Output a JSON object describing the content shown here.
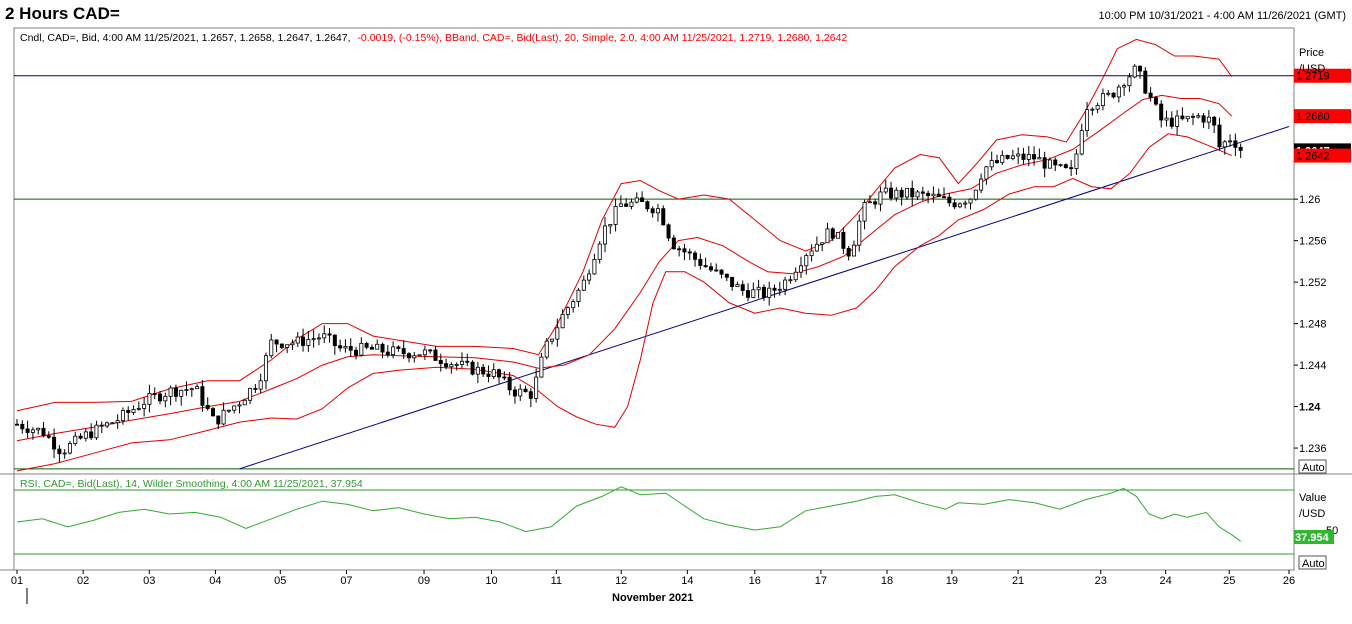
{
  "header": {
    "title": "2 Hours CAD=",
    "date_range": "10:00 PM 10/31/2021 - 4:00 AM 11/26/2021 (GMT)"
  },
  "price_pane": {
    "legend_black": "Cndl, CAD=, Bid,  4:00 AM 11/25/2021, 1.2657, 1.2658, 1.2647, 1.2647,",
    "legend_red": "-0.0019, (-0.15%), BBand, CAD=, Bid(Last),  20, Simple, 2.0, 4:00 AM 11/25/2021, 1.2719, 1.2680, 1.2642",
    "axis_title_1": "Price",
    "axis_title_2": "/USD",
    "auto_label": "Auto",
    "price_labels": [
      {
        "text": "1.26",
        "value": 1.26,
        "bold": false
      },
      {
        "text": "1.256",
        "value": 1.256,
        "bold": false
      },
      {
        "text": "1.252",
        "value": 1.252,
        "bold": false
      },
      {
        "text": "1.248",
        "value": 1.248,
        "bold": false
      },
      {
        "text": "1.244",
        "value": 1.244,
        "bold": false
      },
      {
        "text": "1.24",
        "value": 1.24,
        "bold": true
      },
      {
        "text": "1.236",
        "value": 1.236,
        "bold": false
      }
    ],
    "value_tags": [
      {
        "text": "1.2719",
        "value": 1.2719,
        "bg": "#ff0000",
        "fg": "#000000"
      },
      {
        "text": "1.2680",
        "value": 1.268,
        "bg": "#ff0000",
        "fg": "#000000"
      },
      {
        "text": "1.2647",
        "value": 1.2647,
        "bg": "#000000",
        "fg": "#ffffff"
      },
      {
        "text": "1.2642",
        "value": 1.2642,
        "bg": "#ff0000",
        "fg": "#000000"
      }
    ]
  },
  "rsi_pane": {
    "legend": "RSI, CAD=, Bid(Last),  14, Wilder Smoothing,  4:00 AM 11/25/2021, 37.954",
    "axis_title_1": "Value",
    "axis_title_2": "/USD",
    "level_label": "50",
    "value_tag": "37.954",
    "auto_label": "Auto"
  },
  "x_axis": {
    "labels": [
      "01",
      "02",
      "03",
      "04",
      "05",
      "07",
      "09",
      "10",
      "11",
      "12",
      "14",
      "16",
      "17",
      "18",
      "19",
      "21",
      "23",
      "24",
      "25",
      "26"
    ],
    "month_label": "November 2021"
  },
  "chart_data": {
    "type": "candlestick",
    "title": "2 Hours CAD=",
    "y_range": [
      1.2335,
      1.2765
    ],
    "x_range": [
      0,
      1
    ],
    "day_ticks": [
      {
        "label": "01",
        "x": 0.0
      },
      {
        "label": "02",
        "x": 0.052
      },
      {
        "label": "03",
        "x": 0.104
      },
      {
        "label": "04",
        "x": 0.156
      },
      {
        "label": "05",
        "x": 0.207
      },
      {
        "label": "07",
        "x": 0.259
      },
      {
        "label": "09",
        "x": 0.32
      },
      {
        "label": "10",
        "x": 0.373
      },
      {
        "label": "11",
        "x": 0.424
      },
      {
        "label": "12",
        "x": 0.475
      },
      {
        "label": "14",
        "x": 0.527
      },
      {
        "label": "16",
        "x": 0.58
      },
      {
        "label": "17",
        "x": 0.632
      },
      {
        "label": "18",
        "x": 0.684
      },
      {
        "label": "19",
        "x": 0.735
      },
      {
        "label": "21",
        "x": 0.787
      },
      {
        "label": "23",
        "x": 0.852
      },
      {
        "label": "24",
        "x": 0.903
      },
      {
        "label": "25",
        "x": 0.953
      },
      {
        "label": "26",
        "x": 1.0
      }
    ],
    "close_path": [
      [
        0.0,
        1.2383
      ],
      [
        0.02,
        1.2376
      ],
      [
        0.035,
        1.2357
      ],
      [
        0.055,
        1.2373
      ],
      [
        0.08,
        1.2388
      ],
      [
        0.1,
        1.2405
      ],
      [
        0.12,
        1.2415
      ],
      [
        0.14,
        1.2418
      ],
      [
        0.155,
        1.2385
      ],
      [
        0.175,
        1.2405
      ],
      [
        0.19,
        1.2425
      ],
      [
        0.2,
        1.2462
      ],
      [
        0.22,
        1.2462
      ],
      [
        0.24,
        1.2468
      ],
      [
        0.255,
        1.2455
      ],
      [
        0.28,
        1.2455
      ],
      [
        0.3,
        1.2452
      ],
      [
        0.32,
        1.2452
      ],
      [
        0.335,
        1.2445
      ],
      [
        0.355,
        1.2437
      ],
      [
        0.375,
        1.2432
      ],
      [
        0.39,
        1.2415
      ],
      [
        0.405,
        1.2412
      ],
      [
        0.415,
        1.2455
      ],
      [
        0.43,
        1.249
      ],
      [
        0.445,
        1.2518
      ],
      [
        0.46,
        1.2568
      ],
      [
        0.475,
        1.2595
      ],
      [
        0.49,
        1.2596
      ],
      [
        0.505,
        1.259
      ],
      [
        0.515,
        1.2558
      ],
      [
        0.53,
        1.2545
      ],
      [
        0.55,
        1.2528
      ],
      [
        0.57,
        1.2512
      ],
      [
        0.59,
        1.2508
      ],
      [
        0.605,
        1.2522
      ],
      [
        0.62,
        1.2548
      ],
      [
        0.64,
        1.257
      ],
      [
        0.655,
        1.2548
      ],
      [
        0.665,
        1.259
      ],
      [
        0.68,
        1.2605
      ],
      [
        0.7,
        1.2605
      ],
      [
        0.72,
        1.2602
      ],
      [
        0.735,
        1.2596
      ],
      [
        0.75,
        1.2602
      ],
      [
        0.76,
        1.263
      ],
      [
        0.78,
        1.264
      ],
      [
        0.8,
        1.264
      ],
      [
        0.815,
        1.263
      ],
      [
        0.83,
        1.2625
      ],
      [
        0.84,
        1.269
      ],
      [
        0.86,
        1.27
      ],
      [
        0.87,
        1.2715
      ],
      [
        0.88,
        1.2725
      ],
      [
        0.89,
        1.27
      ],
      [
        0.9,
        1.2675
      ],
      [
        0.915,
        1.2675
      ],
      [
        0.93,
        1.268
      ],
      [
        0.94,
        1.2675
      ],
      [
        0.945,
        1.265
      ],
      [
        0.955,
        1.266
      ],
      [
        0.962,
        1.2647
      ]
    ],
    "bband": {
      "period": 20,
      "stdev": 2.0,
      "upper": [
        1.2719
      ],
      "middle": [
        1.268
      ],
      "lower": [
        1.2642
      ],
      "upper_path": [
        [
          0.0,
          1.2396
        ],
        [
          0.03,
          1.2404
        ],
        [
          0.06,
          1.2404
        ],
        [
          0.09,
          1.2405
        ],
        [
          0.12,
          1.2417
        ],
        [
          0.15,
          1.2425
        ],
        [
          0.175,
          1.2425
        ],
        [
          0.2,
          1.2445
        ],
        [
          0.22,
          1.2465
        ],
        [
          0.24,
          1.248
        ],
        [
          0.26,
          1.248
        ],
        [
          0.28,
          1.2468
        ],
        [
          0.3,
          1.2464
        ],
        [
          0.33,
          1.2458
        ],
        [
          0.36,
          1.2458
        ],
        [
          0.39,
          1.2456
        ],
        [
          0.41,
          1.245
        ],
        [
          0.425,
          1.248
        ],
        [
          0.445,
          1.253
        ],
        [
          0.46,
          1.258
        ],
        [
          0.475,
          1.2615
        ],
        [
          0.49,
          1.2618
        ],
        [
          0.505,
          1.2608
        ],
        [
          0.52,
          1.26
        ],
        [
          0.54,
          1.2604
        ],
        [
          0.56,
          1.26
        ],
        [
          0.58,
          1.258
        ],
        [
          0.6,
          1.256
        ],
        [
          0.62,
          1.255
        ],
        [
          0.64,
          1.256
        ],
        [
          0.66,
          1.2585
        ],
        [
          0.675,
          1.2608
        ],
        [
          0.69,
          1.263
        ],
        [
          0.71,
          1.2643
        ],
        [
          0.725,
          1.264
        ],
        [
          0.74,
          1.2615
        ],
        [
          0.755,
          1.2635
        ],
        [
          0.77,
          1.2657
        ],
        [
          0.79,
          1.2662
        ],
        [
          0.81,
          1.266
        ],
        [
          0.825,
          1.2655
        ],
        [
          0.84,
          1.2685
        ],
        [
          0.855,
          1.272
        ],
        [
          0.865,
          1.2745
        ],
        [
          0.88,
          1.2754
        ],
        [
          0.895,
          1.2749
        ],
        [
          0.91,
          1.2738
        ],
        [
          0.925,
          1.2738
        ],
        [
          0.945,
          1.2735
        ],
        [
          0.955,
          1.2718
        ]
      ],
      "middle_path": [
        [
          0.0,
          1.2367
        ],
        [
          0.03,
          1.2374
        ],
        [
          0.06,
          1.238
        ],
        [
          0.09,
          1.2387
        ],
        [
          0.12,
          1.2393
        ],
        [
          0.15,
          1.24
        ],
        [
          0.175,
          1.2405
        ],
        [
          0.2,
          1.2417
        ],
        [
          0.22,
          1.2427
        ],
        [
          0.24,
          1.244
        ],
        [
          0.26,
          1.2448
        ],
        [
          0.28,
          1.245
        ],
        [
          0.3,
          1.2449
        ],
        [
          0.33,
          1.2448
        ],
        [
          0.36,
          1.2447
        ],
        [
          0.39,
          1.2443
        ],
        [
          0.41,
          1.2437
        ],
        [
          0.43,
          1.244
        ],
        [
          0.45,
          1.245
        ],
        [
          0.47,
          1.2475
        ],
        [
          0.49,
          1.251
        ],
        [
          0.505,
          1.254
        ],
        [
          0.52,
          1.256
        ],
        [
          0.535,
          1.2563
        ],
        [
          0.555,
          1.2555
        ],
        [
          0.575,
          1.254
        ],
        [
          0.59,
          1.253
        ],
        [
          0.61,
          1.2528
        ],
        [
          0.63,
          1.2535
        ],
        [
          0.65,
          1.2545
        ],
        [
          0.67,
          1.2565
        ],
        [
          0.69,
          1.2585
        ],
        [
          0.71,
          1.2597
        ],
        [
          0.73,
          1.2605
        ],
        [
          0.75,
          1.261
        ],
        [
          0.77,
          1.2625
        ],
        [
          0.79,
          1.2633
        ],
        [
          0.81,
          1.2638
        ],
        [
          0.83,
          1.2648
        ],
        [
          0.85,
          1.2665
        ],
        [
          0.87,
          1.2683
        ],
        [
          0.885,
          1.2696
        ],
        [
          0.9,
          1.27
        ],
        [
          0.915,
          1.2697
        ],
        [
          0.93,
          1.2697
        ],
        [
          0.945,
          1.2692
        ],
        [
          0.955,
          1.268
        ]
      ],
      "lower_path": [
        [
          0.0,
          1.2338
        ],
        [
          0.03,
          1.2345
        ],
        [
          0.06,
          1.2355
        ],
        [
          0.09,
          1.2365
        ],
        [
          0.12,
          1.2368
        ],
        [
          0.15,
          1.2377
        ],
        [
          0.175,
          1.2385
        ],
        [
          0.2,
          1.2389
        ],
        [
          0.22,
          1.2388
        ],
        [
          0.24,
          1.2398
        ],
        [
          0.26,
          1.2418
        ],
        [
          0.28,
          1.2432
        ],
        [
          0.3,
          1.2435
        ],
        [
          0.33,
          1.2438
        ],
        [
          0.36,
          1.2436
        ],
        [
          0.39,
          1.243
        ],
        [
          0.41,
          1.2415
        ],
        [
          0.425,
          1.24
        ],
        [
          0.44,
          1.239
        ],
        [
          0.455,
          1.2383
        ],
        [
          0.47,
          1.238
        ],
        [
          0.48,
          1.24
        ],
        [
          0.49,
          1.2445
        ],
        [
          0.5,
          1.25
        ],
        [
          0.51,
          1.253
        ],
        [
          0.525,
          1.253
        ],
        [
          0.54,
          1.252
        ],
        [
          0.56,
          1.25
        ],
        [
          0.58,
          1.249
        ],
        [
          0.6,
          1.2495
        ],
        [
          0.62,
          1.249
        ],
        [
          0.64,
          1.2488
        ],
        [
          0.66,
          1.2495
        ],
        [
          0.675,
          1.2512
        ],
        [
          0.69,
          1.2535
        ],
        [
          0.71,
          1.2555
        ],
        [
          0.725,
          1.2565
        ],
        [
          0.74,
          1.258
        ],
        [
          0.76,
          1.259
        ],
        [
          0.78,
          1.2605
        ],
        [
          0.8,
          1.2612
        ],
        [
          0.815,
          1.2612
        ],
        [
          0.83,
          1.262
        ],
        [
          0.845,
          1.2612
        ],
        [
          0.86,
          1.261
        ],
        [
          0.875,
          1.2625
        ],
        [
          0.89,
          1.265
        ],
        [
          0.905,
          1.2663
        ],
        [
          0.92,
          1.266
        ],
        [
          0.94,
          1.265
        ],
        [
          0.955,
          1.2642
        ]
      ]
    },
    "horizontal_lines": [
      {
        "value": 1.2719,
        "color": "#000080"
      },
      {
        "value": 1.26,
        "color": "#006400"
      },
      {
        "value": 1.234,
        "color": "#006400"
      }
    ],
    "trendline": {
      "color": "#000080",
      "x1": 0.175,
      "y1": 1.234,
      "x2": 1.0,
      "y2": 1.267
    },
    "last_close": 1.2647,
    "rsi": {
      "period": 14,
      "last": 37.954,
      "levels": [
        70,
        30
      ],
      "y_range": [
        20,
        80
      ],
      "path": [
        [
          0.0,
          50
        ],
        [
          0.02,
          52
        ],
        [
          0.04,
          47
        ],
        [
          0.06,
          51
        ],
        [
          0.08,
          56
        ],
        [
          0.1,
          58
        ],
        [
          0.12,
          55
        ],
        [
          0.14,
          56
        ],
        [
          0.16,
          53
        ],
        [
          0.18,
          46
        ],
        [
          0.2,
          52
        ],
        [
          0.22,
          58
        ],
        [
          0.24,
          63
        ],
        [
          0.26,
          61
        ],
        [
          0.28,
          57
        ],
        [
          0.3,
          59
        ],
        [
          0.32,
          55
        ],
        [
          0.34,
          52
        ],
        [
          0.36,
          53
        ],
        [
          0.38,
          50
        ],
        [
          0.4,
          44
        ],
        [
          0.42,
          47
        ],
        [
          0.44,
          60
        ],
        [
          0.46,
          66
        ],
        [
          0.475,
          72
        ],
        [
          0.49,
          67
        ],
        [
          0.51,
          68
        ],
        [
          0.525,
          60
        ],
        [
          0.54,
          52
        ],
        [
          0.56,
          48
        ],
        [
          0.58,
          45
        ],
        [
          0.6,
          47
        ],
        [
          0.62,
          57
        ],
        [
          0.64,
          60
        ],
        [
          0.66,
          63
        ],
        [
          0.675,
          66
        ],
        [
          0.69,
          67
        ],
        [
          0.71,
          62
        ],
        [
          0.73,
          58
        ],
        [
          0.74,
          62
        ],
        [
          0.76,
          61
        ],
        [
          0.78,
          64
        ],
        [
          0.8,
          62
        ],
        [
          0.82,
          58
        ],
        [
          0.84,
          64
        ],
        [
          0.86,
          68
        ],
        [
          0.87,
          71
        ],
        [
          0.88,
          66
        ],
        [
          0.89,
          55
        ],
        [
          0.9,
          52
        ],
        [
          0.91,
          55
        ],
        [
          0.92,
          53
        ],
        [
          0.935,
          56
        ],
        [
          0.945,
          47
        ],
        [
          0.955,
          42
        ],
        [
          0.962,
          38
        ]
      ]
    }
  }
}
